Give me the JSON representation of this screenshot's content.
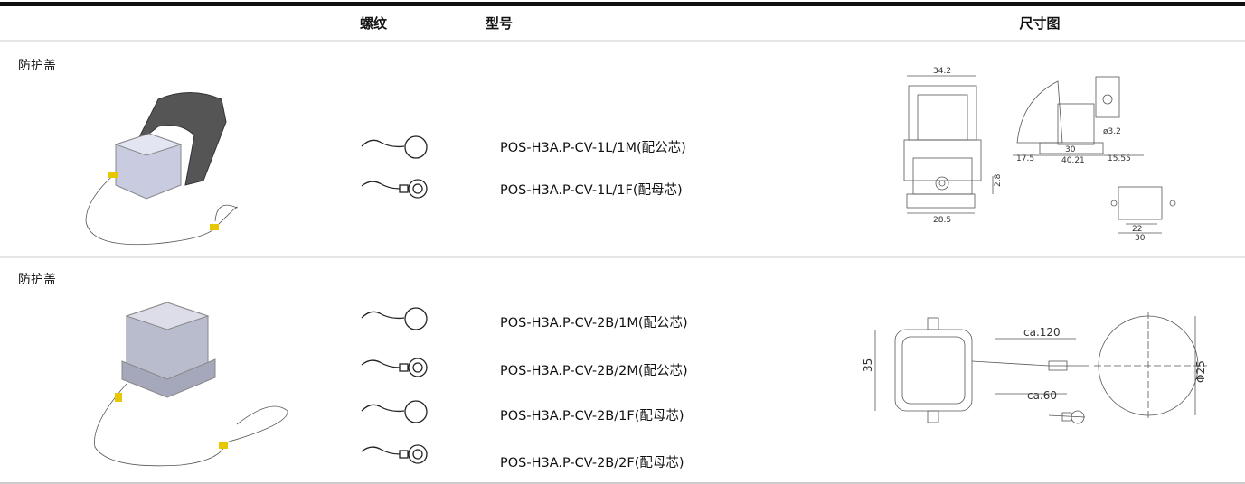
{
  "table": {
    "headers": [
      "螺纹",
      "型号",
      "尺寸图"
    ],
    "rows": [
      {
        "label": "防护盖",
        "models": [
          "POS-H3A.P-CV-1L/1M(配公芯)",
          "POS-H3A.P-CV-1L/1F(配母芯)"
        ],
        "dimensions": [
          "34.2",
          "17.5",
          "30",
          "40.21",
          "15.55",
          "ø3.2",
          "2.8",
          "28.5",
          "22",
          "30"
        ]
      },
      {
        "label": "防护盖",
        "models": [
          "POS-H3A.P-CV-2B/1M(配公芯)",
          "POS-H3A.P-CV-2B/2M(配公芯)",
          "POS-H3A.P-CV-2B/1F(配母芯)",
          "POS-H3A.P-CV-2B/2F(配母芯)"
        ],
        "dimensions": [
          "ca.120",
          "35",
          "ca.60",
          "Φ25"
        ]
      }
    ]
  }
}
